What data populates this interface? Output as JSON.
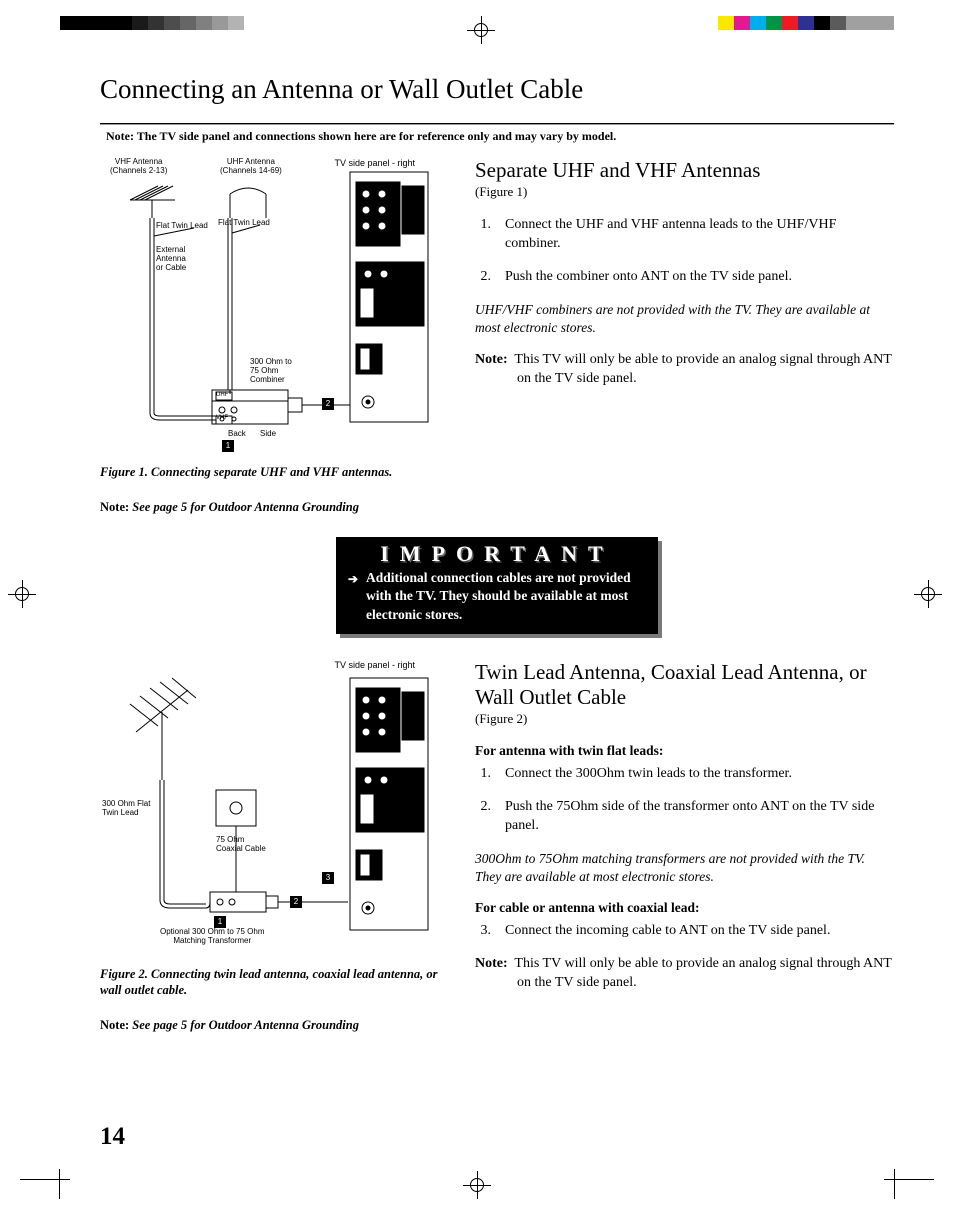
{
  "registration_bars": {
    "left": [
      {
        "w": 72,
        "color": "#000000"
      },
      {
        "w": 16,
        "color": "#1a1a1a"
      },
      {
        "w": 16,
        "color": "#333333"
      },
      {
        "w": 16,
        "color": "#4d4d4d"
      },
      {
        "w": 16,
        "color": "#666666"
      },
      {
        "w": 16,
        "color": "#808080"
      },
      {
        "w": 16,
        "color": "#999999"
      },
      {
        "w": 16,
        "color": "#b3b3b3"
      }
    ],
    "right": [
      {
        "w": 16,
        "color": "#f7ea00"
      },
      {
        "w": 16,
        "color": "#e11b8e"
      },
      {
        "w": 16,
        "color": "#00aeef"
      },
      {
        "w": 16,
        "color": "#009444"
      },
      {
        "w": 16,
        "color": "#ed1c24"
      },
      {
        "w": 16,
        "color": "#2e3192"
      },
      {
        "w": 16,
        "color": "#000000"
      },
      {
        "w": 16,
        "color": "#5b5b5b"
      },
      {
        "w": 48,
        "color": "#a0a0a0"
      }
    ]
  },
  "title": "Connecting an Antenna or Wall Outlet Cable",
  "top_note": "Note:  The TV side panel and connections shown here are for reference only and may vary by model.",
  "figure1": {
    "panel_label": "TV side panel - right",
    "vhf": "VHF Antenna\n(Channels 2-13)",
    "uhf": "UHF Antenna\n(Channels 14-69)",
    "ftl1": "Flat Twin Lead",
    "ftl2": "Flat Twin Lead",
    "ext": "External\nAntenna\nor Cable",
    "combiner": "300 Ohm to\n75 Ohm\nCombiner",
    "uhf_box": "UHF",
    "vhf_box": "VHF",
    "back": "Back",
    "side": "Side",
    "caption": "Figure 1.  Connecting separate UHF and VHF antennas.",
    "ground": "See page 5 for Outdoor Antenna Grounding",
    "ground_prefix": "Note:"
  },
  "section1": {
    "heading": "Separate UHF and VHF Antennas",
    "figref": "(Figure 1)",
    "steps": [
      "Connect the UHF and VHF antenna leads to the UHF/VHF combiner.",
      "Push the combiner onto ANT on the TV side panel."
    ],
    "ital_note": "UHF/VHF combiners are not provided with the TV.  They are available at most electronic stores.",
    "note_prefix": "Note:",
    "note_body": "This TV will only be able to provide an analog signal through ANT on the TV side panel."
  },
  "important": {
    "title": "IMPORTANT",
    "body": "Additional connection cables are not provided with the TV.  They should be available at most electronic stores."
  },
  "figure2": {
    "panel_label": "TV side panel - right",
    "twin": "300 Ohm Flat\nTwin Lead",
    "coax": "75 Ohm\nCoaxial Cable",
    "optional": "Optional 300 Ohm to 75 Ohm\nMatching Transformer",
    "caption": "Figure 2.  Connecting twin lead antenna, coaxial lead antenna, or wall outlet cable.",
    "ground": "See page 5 for Outdoor Antenna Grounding",
    "ground_prefix": "Note:"
  },
  "section2": {
    "heading": "Twin Lead Antenna, Coaxial Lead Antenna, or Wall Outlet Cable",
    "figref": "(Figure 2)",
    "sub1": "For antenna with twin flat leads:",
    "steps1": [
      "Connect the 300Ohm twin leads to the transformer.",
      "Push the 75Ohm side of the transformer onto ANT on the TV side panel."
    ],
    "ital_note": "300Ohm to 75Ohm matching transformers are not provided with the TV.  They are available at most electronic stores.",
    "sub2": "For cable or antenna with coaxial lead:",
    "steps2": [
      "Connect the incoming cable to ANT on the TV side panel."
    ],
    "note_prefix": "Note:",
    "note_body": "This TV will only be able to provide an analog signal through ANT on the TV side panel."
  },
  "page_number": "14"
}
